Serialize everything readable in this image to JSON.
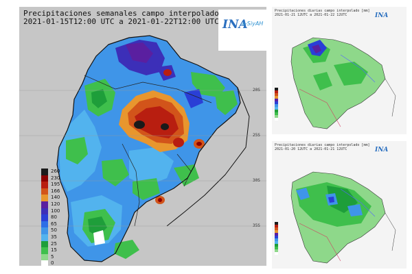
{
  "main_panel": {
    "title_line1": "Precipitaciones semanales campo interpolado [mm]",
    "title_line2": "2021-01-15T12:00 UTC a 2021-01-22T12:00 UTC",
    "logo": {
      "text": "INA",
      "subtext": "a-SiyAH"
    },
    "legend": [
      {
        "label": "260",
        "color": "#1a1a1a"
      },
      {
        "label": "230",
        "color": "#8b0000"
      },
      {
        "label": "195",
        "color": "#b81e10"
      },
      {
        "label": "166",
        "color": "#d2541a"
      },
      {
        "label": "140",
        "color": "#e8962e"
      },
      {
        "label": "120",
        "color": "#5a1fa0"
      },
      {
        "label": "100",
        "color": "#3c2fb8"
      },
      {
        "label": "80",
        "color": "#2a3fd6"
      },
      {
        "label": "65",
        "color": "#2e6ee6"
      },
      {
        "label": "50",
        "color": "#3f95e8"
      },
      {
        "label": "35",
        "color": "#52b3ee"
      },
      {
        "label": "25",
        "color": "#1e9e3a"
      },
      {
        "label": "15",
        "color": "#3fbf4c"
      },
      {
        "label": "5",
        "color": "#8ed88a"
      },
      {
        "label": "0",
        "color": "#ffffff"
      }
    ],
    "lat_labels": [
      "20S",
      "25S",
      "30S",
      "35S"
    ]
  },
  "side_panels": [
    {
      "title_line1": "Precipitaciones diarias campo interpolado [mm]",
      "title_line2": "2021-01-21 12UTC a 2021-01-22 12UTC",
      "logo": "INA"
    },
    {
      "title_line1": "Precipitaciones diarias campo interpolado [mm]",
      "title_line2": "2021-01-20 12UTC a 2021-01-21 12UTC",
      "logo": "INA"
    }
  ],
  "colors": {
    "background_gray": "#c6c6c6",
    "border": "#111111",
    "river": "#5566ff"
  }
}
